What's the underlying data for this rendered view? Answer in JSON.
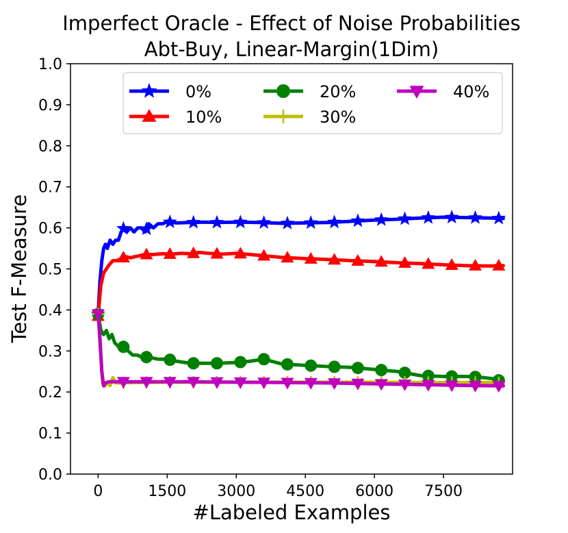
{
  "chart_data": {
    "type": "line",
    "title": "Imperfect Oracle - Effect of Noise Probabilities",
    "subtitle": "Abt-Buy, Linear-Margin(1Dim)",
    "xlabel": "#Labeled Examples",
    "ylabel": "Test F-Measure",
    "xlim": [
      -600,
      9000
    ],
    "ylim": [
      0.0,
      1.0
    ],
    "xticks": [
      0,
      1500,
      3000,
      4500,
      6000,
      7500
    ],
    "yticks": [
      0.0,
      0.1,
      0.2,
      0.3,
      0.4,
      0.5,
      0.6,
      0.7,
      0.8,
      0.9,
      1.0
    ],
    "legend_position": "top",
    "series": [
      {
        "name": "0%",
        "color": "#0000ff",
        "marker": "star",
        "x": [
          0,
          40,
          80,
          120,
          160,
          200,
          260,
          320,
          380,
          440,
          500,
          560,
          620,
          700,
          780,
          860,
          940,
          1020,
          1100,
          1200,
          1300,
          1400,
          1500,
          1700,
          2000,
          2300,
          2600,
          3000,
          3500,
          4000,
          4500,
          5000,
          5500,
          6000,
          6500,
          7000,
          7500,
          8000,
          8500,
          8800
        ],
        "values": [
          0.39,
          0.47,
          0.52,
          0.55,
          0.56,
          0.55,
          0.57,
          0.56,
          0.57,
          0.57,
          0.59,
          0.6,
          0.59,
          0.6,
          0.59,
          0.6,
          0.6,
          0.59,
          0.61,
          0.6,
          0.61,
          0.61,
          0.615,
          0.612,
          0.613,
          0.614,
          0.613,
          0.614,
          0.613,
          0.611,
          0.612,
          0.613,
          0.616,
          0.619,
          0.621,
          0.624,
          0.626,
          0.625,
          0.624,
          0.623
        ],
        "marker_x": [
          0,
          550,
          1050,
          1560,
          2070,
          2580,
          3090,
          3600,
          4110,
          4620,
          5130,
          5640,
          6150,
          6660,
          7170,
          7680,
          8190,
          8700
        ]
      },
      {
        "name": "10%",
        "color": "#ff0000",
        "marker": "triangle-up",
        "x": [
          0,
          60,
          120,
          180,
          240,
          320,
          400,
          500,
          600,
          700,
          800,
          900,
          1000,
          1200,
          1400,
          1600,
          1800,
          2000,
          2200,
          2400,
          2700,
          3000,
          3300,
          3600,
          4000,
          4500,
          5000,
          5500,
          6000,
          6500,
          7000,
          7500,
          8000,
          8500,
          8800
        ],
        "values": [
          0.385,
          0.46,
          0.49,
          0.5,
          0.51,
          0.52,
          0.52,
          0.525,
          0.53,
          0.527,
          0.53,
          0.532,
          0.535,
          0.535,
          0.537,
          0.536,
          0.538,
          0.537,
          0.54,
          0.538,
          0.536,
          0.538,
          0.535,
          0.532,
          0.528,
          0.525,
          0.523,
          0.52,
          0.518,
          0.515,
          0.513,
          0.51,
          0.508,
          0.507,
          0.508
        ],
        "marker_x": [
          0,
          550,
          1050,
          1560,
          2070,
          2580,
          3090,
          3600,
          4110,
          4620,
          5130,
          5640,
          6150,
          6660,
          7170,
          7680,
          8190,
          8700
        ]
      },
      {
        "name": "20%",
        "color": "#008000",
        "marker": "circle",
        "x": [
          0,
          60,
          120,
          180,
          240,
          300,
          360,
          450,
          550,
          650,
          750,
          850,
          950,
          1100,
          1300,
          1500,
          1700,
          2000,
          2300,
          2600,
          3000,
          3300,
          3600,
          4000,
          4500,
          5000,
          5500,
          6000,
          6500,
          7000,
          7500,
          8000,
          8300,
          8600,
          8800
        ],
        "values": [
          0.39,
          0.35,
          0.34,
          0.35,
          0.33,
          0.34,
          0.32,
          0.31,
          0.31,
          0.3,
          0.29,
          0.29,
          0.285,
          0.285,
          0.28,
          0.28,
          0.275,
          0.27,
          0.27,
          0.27,
          0.272,
          0.275,
          0.28,
          0.268,
          0.265,
          0.262,
          0.26,
          0.255,
          0.25,
          0.24,
          0.238,
          0.238,
          0.236,
          0.232,
          0.225
        ],
        "marker_x": [
          0,
          550,
          1050,
          1560,
          2070,
          2580,
          3090,
          3600,
          4110,
          4620,
          5130,
          5640,
          6150,
          6660,
          7170,
          7680,
          8190,
          8700
        ]
      },
      {
        "name": "30%",
        "color": "#bfbf00",
        "marker": "plus",
        "x": [
          0,
          50,
          100,
          150,
          200,
          260,
          320,
          380,
          500,
          800,
          1500,
          3000,
          4500,
          6000,
          7500,
          8500,
          8800
        ],
        "values": [
          0.39,
          0.3,
          0.22,
          0.215,
          0.222,
          0.216,
          0.235,
          0.222,
          0.222,
          0.223,
          0.224,
          0.224,
          0.224,
          0.224,
          0.223,
          0.223,
          0.222
        ],
        "marker_x": [
          0,
          550,
          1050,
          1560,
          2070,
          2580,
          3090,
          3600,
          4110,
          4620,
          5130,
          5640,
          6150,
          6660,
          7170,
          7680,
          8190,
          8700
        ]
      },
      {
        "name": "40%",
        "color": "#bf00bf",
        "marker": "triangle-down",
        "x": [
          0,
          40,
          80,
          120,
          160,
          220,
          300,
          500,
          1000,
          2000,
          3000,
          4000,
          5000,
          6000,
          7000,
          8000,
          8800
        ],
        "values": [
          0.39,
          0.33,
          0.25,
          0.215,
          0.222,
          0.225,
          0.225,
          0.225,
          0.225,
          0.225,
          0.224,
          0.223,
          0.222,
          0.22,
          0.218,
          0.216,
          0.215
        ],
        "marker_x": [
          0,
          550,
          1050,
          1560,
          2070,
          2580,
          3090,
          3600,
          4110,
          4620,
          5130,
          5640,
          6150,
          6660,
          7170,
          7680,
          8190,
          8700
        ]
      }
    ]
  }
}
